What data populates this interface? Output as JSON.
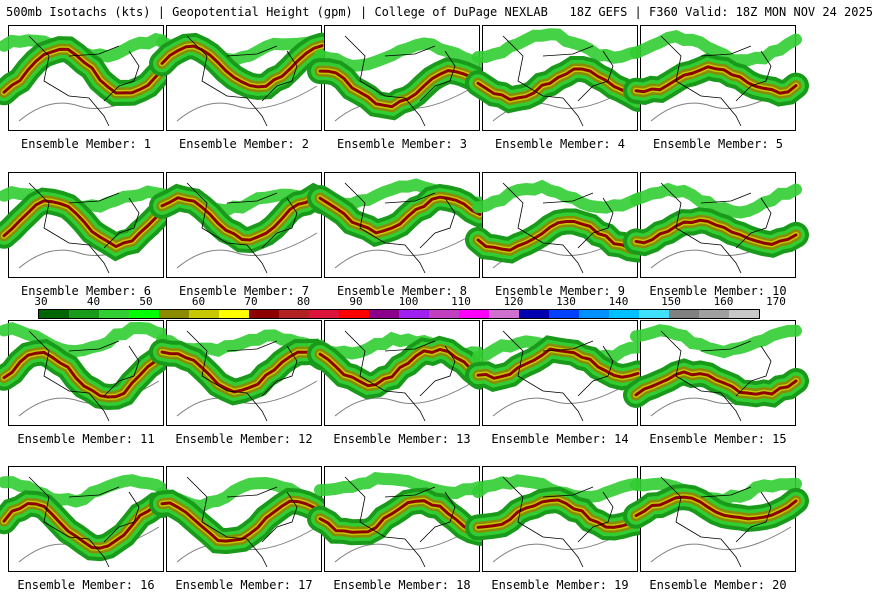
{
  "header": {
    "title": "500mb Isotachs (kts) | Geopotential Height (gpm) | College of DuPage NEXLAB   18Z GEFS | F360 Valid: 18Z MON NOV 24 2025"
  },
  "panels": [
    {
      "label": "Ensemble Member: 1"
    },
    {
      "label": "Ensemble Member: 2"
    },
    {
      "label": "Ensemble Member: 3"
    },
    {
      "label": "Ensemble Member: 4"
    },
    {
      "label": "Ensemble Member: 5"
    },
    {
      "label": "Ensemble Member: 6"
    },
    {
      "label": "Ensemble Member: 7"
    },
    {
      "label": "Ensemble Member: 8"
    },
    {
      "label": "Ensemble Member: 9"
    },
    {
      "label": "Ensemble Member: 10"
    },
    {
      "label": "Ensemble Member: 11"
    },
    {
      "label": "Ensemble Member: 12"
    },
    {
      "label": "Ensemble Member: 13"
    },
    {
      "label": "Ensemble Member: 14"
    },
    {
      "label": "Ensemble Member: 15"
    },
    {
      "label": "Ensemble Member: 16"
    },
    {
      "label": "Ensemble Member: 17"
    },
    {
      "label": "Ensemble Member: 18"
    },
    {
      "label": "Ensemble Member: 19"
    },
    {
      "label": "Ensemble Member: 20"
    }
  ],
  "colorbar": {
    "labels": [
      "30",
      "40",
      "50",
      "60",
      "70",
      "80",
      "90",
      "100",
      "110",
      "120",
      "130",
      "140",
      "150",
      "160",
      "170"
    ],
    "colors": [
      "#006400",
      "#1a9a1a",
      "#32cd32",
      "#00ff00",
      "#8b8b00",
      "#c8c800",
      "#ffff00",
      "#8b0000",
      "#b22222",
      "#dc143c",
      "#ff0000",
      "#8b008b",
      "#a020f0",
      "#c040c0",
      "#ff00ff",
      "#d070d0",
      "#0000b0",
      "#0040ff",
      "#0090ff",
      "#00c0ff",
      "#40e0ff",
      "#808080",
      "#a0a0a0",
      "#c8c8c8"
    ]
  },
  "map_colors": {
    "land_line": "#000000",
    "height_contour": "#808080",
    "jet_low": "#1a9a1a",
    "jet_mid": "#32cd32",
    "jet_olive": "#8b8b00",
    "jet_yellow": "#c8c800",
    "jet_core": "#8b0000"
  }
}
